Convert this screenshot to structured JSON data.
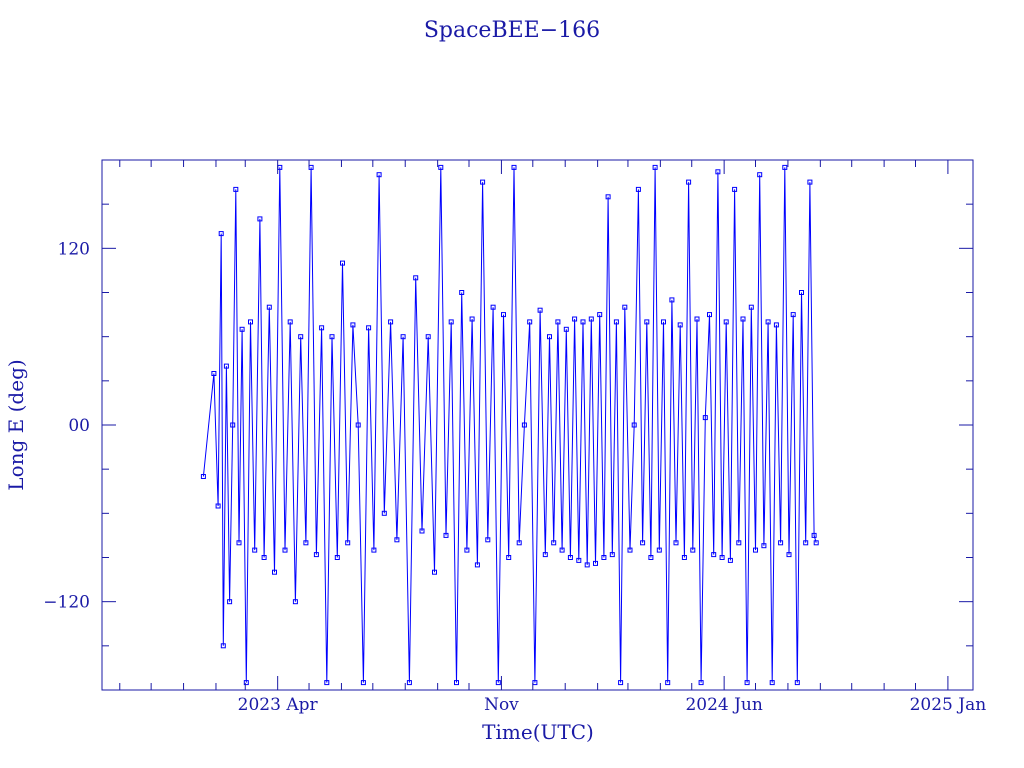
{
  "colors": {
    "axis": "#1a1aa6",
    "series": "#0000ff",
    "text": "#1a1aa6",
    "background": "#ffffff"
  },
  "chart_data": {
    "type": "line",
    "title": "SpaceBEE−166",
    "xlabel": "Time(UTC)",
    "ylabel": "Long E (deg)",
    "xlim": [
      "2022-10-15",
      "2025-01-25"
    ],
    "ylim": [
      -180,
      180
    ],
    "x_ticks": [
      {
        "date": "2023-04-01",
        "label": "2023 Apr"
      },
      {
        "date": "2023-11-01",
        "label": "Nov"
      },
      {
        "date": "2024-06-01",
        "label": "2024 Jun"
      },
      {
        "date": "2025-01-01",
        "label": "2025 Jan"
      }
    ],
    "y_ticks": [
      {
        "value": 120,
        "label": "120"
      },
      {
        "value": 0,
        "label": "00"
      },
      {
        "value": -120,
        "label": "−120"
      }
    ],
    "grid": false,
    "series": [
      {
        "marker": "square",
        "points": [
          [
            "2023-01-20",
            -35
          ],
          [
            "2023-01-30",
            35
          ],
          [
            "2023-02-03",
            -55
          ],
          [
            "2023-02-06",
            130
          ],
          [
            "2023-02-08",
            -150
          ],
          [
            "2023-02-11",
            40
          ],
          [
            "2023-02-14",
            -120
          ],
          [
            "2023-02-17",
            0
          ],
          [
            "2023-02-20",
            160
          ],
          [
            "2023-02-23",
            -80
          ],
          [
            "2023-02-26",
            65
          ],
          [
            "2023-03-02",
            -175
          ],
          [
            "2023-03-06",
            70
          ],
          [
            "2023-03-10",
            -85
          ],
          [
            "2023-03-15",
            140
          ],
          [
            "2023-03-19",
            -90
          ],
          [
            "2023-03-24",
            80
          ],
          [
            "2023-03-29",
            -100
          ],
          [
            "2023-04-03",
            175
          ],
          [
            "2023-04-08",
            -85
          ],
          [
            "2023-04-13",
            70
          ],
          [
            "2023-04-18",
            -120
          ],
          [
            "2023-04-23",
            60
          ],
          [
            "2023-04-28",
            -80
          ],
          [
            "2023-05-03",
            175
          ],
          [
            "2023-05-08",
            -88
          ],
          [
            "2023-05-13",
            66
          ],
          [
            "2023-05-18",
            -175
          ],
          [
            "2023-05-23",
            60
          ],
          [
            "2023-05-28",
            -90
          ],
          [
            "2023-06-02",
            110
          ],
          [
            "2023-06-07",
            -80
          ],
          [
            "2023-06-12",
            68
          ],
          [
            "2023-06-17",
            0
          ],
          [
            "2023-06-22",
            -175
          ],
          [
            "2023-06-27",
            66
          ],
          [
            "2023-07-02",
            -85
          ],
          [
            "2023-07-07",
            170
          ],
          [
            "2023-07-12",
            -60
          ],
          [
            "2023-07-18",
            70
          ],
          [
            "2023-07-24",
            -78
          ],
          [
            "2023-07-30",
            60
          ],
          [
            "2023-08-05",
            -175
          ],
          [
            "2023-08-11",
            100
          ],
          [
            "2023-08-17",
            -72
          ],
          [
            "2023-08-23",
            60
          ],
          [
            "2023-08-29",
            -100
          ],
          [
            "2023-09-04",
            175
          ],
          [
            "2023-09-09",
            -75
          ],
          [
            "2023-09-14",
            70
          ],
          [
            "2023-09-19",
            -175
          ],
          [
            "2023-09-24",
            90
          ],
          [
            "2023-09-29",
            -85
          ],
          [
            "2023-10-04",
            72
          ],
          [
            "2023-10-09",
            -95
          ],
          [
            "2023-10-14",
            165
          ],
          [
            "2023-10-19",
            -78
          ],
          [
            "2023-10-24",
            80
          ],
          [
            "2023-10-29",
            -175
          ],
          [
            "2023-11-03",
            75
          ],
          [
            "2023-11-08",
            -90
          ],
          [
            "2023-11-13",
            175
          ],
          [
            "2023-11-18",
            -80
          ],
          [
            "2023-11-23",
            0
          ],
          [
            "2023-11-28",
            70
          ],
          [
            "2023-12-03",
            -175
          ],
          [
            "2023-12-08",
            78
          ],
          [
            "2023-12-13",
            -88
          ],
          [
            "2023-12-17",
            60
          ],
          [
            "2023-12-21",
            -80
          ],
          [
            "2023-12-25",
            70
          ],
          [
            "2023-12-29",
            -85
          ],
          [
            "2024-01-02",
            65
          ],
          [
            "2024-01-06",
            -90
          ],
          [
            "2024-01-10",
            72
          ],
          [
            "2024-01-14",
            -92
          ],
          [
            "2024-01-18",
            70
          ],
          [
            "2024-01-22",
            -95
          ],
          [
            "2024-01-26",
            72
          ],
          [
            "2024-01-30",
            -94
          ],
          [
            "2024-02-03",
            75
          ],
          [
            "2024-02-07",
            -90
          ],
          [
            "2024-02-11",
            155
          ],
          [
            "2024-02-15",
            -88
          ],
          [
            "2024-02-19",
            70
          ],
          [
            "2024-02-23",
            -175
          ],
          [
            "2024-02-27",
            80
          ],
          [
            "2024-03-03",
            -85
          ],
          [
            "2024-03-07",
            0
          ],
          [
            "2024-03-11",
            160
          ],
          [
            "2024-03-15",
            -80
          ],
          [
            "2024-03-19",
            70
          ],
          [
            "2024-03-23",
            -90
          ],
          [
            "2024-03-27",
            175
          ],
          [
            "2024-03-31",
            -85
          ],
          [
            "2024-04-04",
            70
          ],
          [
            "2024-04-08",
            -175
          ],
          [
            "2024-04-12",
            85
          ],
          [
            "2024-04-16",
            -80
          ],
          [
            "2024-04-20",
            68
          ],
          [
            "2024-04-24",
            -90
          ],
          [
            "2024-04-28",
            165
          ],
          [
            "2024-05-02",
            -85
          ],
          [
            "2024-05-06",
            72
          ],
          [
            "2024-05-10",
            -175
          ],
          [
            "2024-05-14",
            5
          ],
          [
            "2024-05-18",
            75
          ],
          [
            "2024-05-22",
            -88
          ],
          [
            "2024-05-26",
            172
          ],
          [
            "2024-05-30",
            -90
          ],
          [
            "2024-06-03",
            70
          ],
          [
            "2024-06-07",
            -92
          ],
          [
            "2024-06-11",
            160
          ],
          [
            "2024-06-15",
            -80
          ],
          [
            "2024-06-19",
            72
          ],
          [
            "2024-06-23",
            -175
          ],
          [
            "2024-06-27",
            80
          ],
          [
            "2024-07-01",
            -85
          ],
          [
            "2024-07-05",
            170
          ],
          [
            "2024-07-09",
            -82
          ],
          [
            "2024-07-13",
            70
          ],
          [
            "2024-07-17",
            -175
          ],
          [
            "2024-07-21",
            68
          ],
          [
            "2024-07-25",
            -80
          ],
          [
            "2024-07-29",
            175
          ],
          [
            "2024-08-02",
            -88
          ],
          [
            "2024-08-06",
            75
          ],
          [
            "2024-08-10",
            -175
          ],
          [
            "2024-08-14",
            90
          ],
          [
            "2024-08-18",
            -80
          ],
          [
            "2024-08-22",
            165
          ],
          [
            "2024-08-26",
            -75
          ],
          [
            "2024-08-28",
            -80
          ]
        ]
      }
    ]
  }
}
